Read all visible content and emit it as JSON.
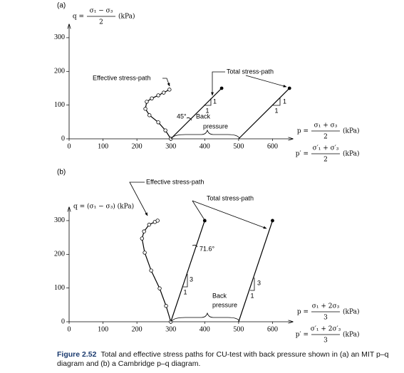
{
  "caption": {
    "label": "Figure 2.52",
    "text": "Total and effective stress paths for CU-test with back pressure shown in (a) an MIT p–q diagram and (b) a Cambridge p–q diagram."
  },
  "chart_data": [
    {
      "type": "line",
      "panel_label": "(a)",
      "y_label": {
        "lhs": "q =",
        "numerator": "σ₁ − σ₃",
        "denominator": "2",
        "unit": "(kPa)"
      },
      "x_labels": [
        {
          "lhs": "p =",
          "numerator": "σ₁ + σ₃",
          "denominator": "2",
          "unit": "(kPa)"
        },
        {
          "lhs": "p′ =",
          "numerator": "σ′₁ + σ′₃",
          "denominator": "2",
          "unit": "(kPa)"
        }
      ],
      "xlim": [
        0,
        660
      ],
      "ylim": [
        0,
        340
      ],
      "xticks": [
        0,
        100,
        200,
        300,
        400,
        500,
        600
      ],
      "yticks": [
        0,
        100,
        200,
        300
      ],
      "series": [
        {
          "name": "Effective stress-path",
          "color": "#000000",
          "marker": "circle",
          "x": [
            300,
            284,
            263,
            237,
            225,
            229,
            244,
            263,
            279,
            296
          ],
          "values": [
            0,
            25,
            49,
            70,
            89,
            110,
            120,
            129,
            137,
            146
          ]
        },
        {
          "name": "Total stress-path",
          "color": "#000000",
          "marker": "end-dot",
          "x": [
            300,
            450,
            null,
            500,
            650
          ],
          "values": [
            0,
            150,
            null,
            0,
            150
          ]
        }
      ],
      "annotations": {
        "angle": "45°",
        "back_pressure": [
          "Back",
          "pressure"
        ],
        "slope_labels": [
          [
            "1",
            "1"
          ],
          [
            "1",
            "1"
          ]
        ]
      }
    },
    {
      "type": "line",
      "panel_label": "(b)",
      "y_label": {
        "text": "q = (σ₁ − σ₃) (kPa)"
      },
      "x_labels": [
        {
          "lhs": "p =",
          "numerator": "σ₁ + 2σ₃",
          "denominator": "3",
          "unit": "(kPa)"
        },
        {
          "lhs": "p′ =",
          "numerator": "σ′₁ + 2σ′₃",
          "denominator": "3",
          "unit": "(kPa)"
        }
      ],
      "xlim": [
        0,
        660
      ],
      "ylim": [
        0,
        340
      ],
      "xticks": [
        0,
        100,
        200,
        300,
        400,
        500,
        600
      ],
      "yticks": [
        0,
        100,
        200,
        300
      ],
      "series": [
        {
          "name": "Effective stress-path",
          "color": "#000000",
          "marker": "circle",
          "x": [
            300,
            286,
            267,
            242,
            223,
            215,
            221,
            236,
            253,
            261
          ],
          "values": [
            0,
            47,
            99,
            152,
            205,
            247,
            268,
            288,
            296,
            300
          ]
        },
        {
          "name": "Total stress-path",
          "color": "#000000",
          "marker": "end-dot",
          "x": [
            300,
            400,
            null,
            500,
            600
          ],
          "values": [
            0,
            300,
            null,
            0,
            300
          ]
        }
      ],
      "annotations": {
        "angle": "71.6°",
        "back_pressure": [
          "Back",
          "pressure"
        ],
        "slope_labels": [
          [
            "3",
            "1"
          ],
          [
            "3",
            "1"
          ]
        ]
      }
    }
  ]
}
